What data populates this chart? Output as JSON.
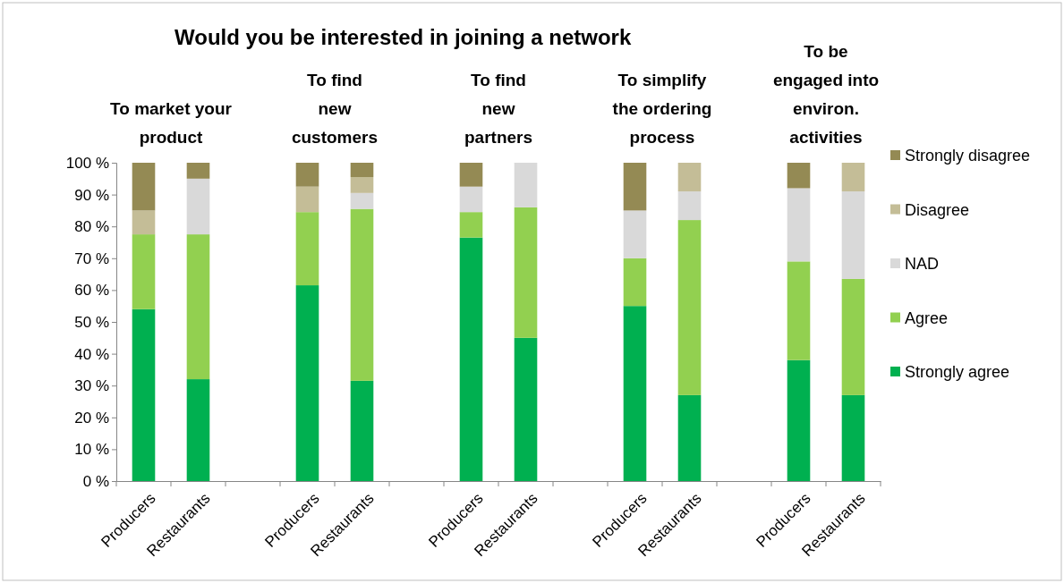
{
  "chart_data": {
    "type": "bar",
    "stacked": true,
    "title": "Would you be interested in joining a network",
    "categories": [
      "Producers",
      "Restaurants",
      null,
      "Producers",
      "Restaurants",
      null,
      "Producers",
      "Restaurants",
      null,
      "Producers",
      "Restaurants",
      null,
      "Producers",
      "Restaurants"
    ],
    "series": [
      {
        "name": "Strongly agree",
        "color": "#00b050",
        "values": [
          54,
          32,
          null,
          61.5,
          31.5,
          null,
          76.5,
          45,
          null,
          55,
          27,
          null,
          38,
          27
        ]
      },
      {
        "name": "Agree",
        "color": "#92d050",
        "values": [
          23.5,
          45.5,
          null,
          23,
          54,
          null,
          8,
          41,
          null,
          15,
          55,
          null,
          31,
          36.5
        ]
      },
      {
        "name": "NAD",
        "color": "#d9d9d9",
        "values": [
          0,
          17.5,
          null,
          0,
          5,
          null,
          8,
          14,
          null,
          15,
          9,
          null,
          23,
          27.5
        ]
      },
      {
        "name": "Disagree",
        "color": "#c4bd97",
        "values": [
          7.5,
          0,
          null,
          8,
          5,
          null,
          0,
          0,
          null,
          0,
          9,
          null,
          0,
          9
        ]
      },
      {
        "name": "Strongly disagree",
        "color": "#948a54",
        "values": [
          15,
          5,
          null,
          7.5,
          4.5,
          null,
          7.5,
          0,
          null,
          15,
          0,
          null,
          8,
          0
        ]
      }
    ],
    "ylim": [
      0,
      100
    ],
    "yticks": [
      {
        "value": 0,
        "label": "0 %"
      },
      {
        "value": 10,
        "label": "10 %"
      },
      {
        "value": 20,
        "label": "20 %"
      },
      {
        "value": 30,
        "label": "30 %"
      },
      {
        "value": 40,
        "label": "40 %"
      },
      {
        "value": 50,
        "label": "50 %"
      },
      {
        "value": 60,
        "label": "60 %"
      },
      {
        "value": 70,
        "label": "70 %"
      },
      {
        "value": 80,
        "label": "80 %"
      },
      {
        "value": 90,
        "label": "90 %"
      },
      {
        "value": 100,
        "label": "100 %"
      }
    ],
    "grid": false,
    "legend": "right",
    "annotations": [
      "To market your\nproduct",
      "To find\nnew\ncustomers",
      "To find\nnew\npartners",
      "To simplify\nthe ordering\nprocess",
      "To be\nengaged into\nenviron.\nactivities"
    ]
  }
}
